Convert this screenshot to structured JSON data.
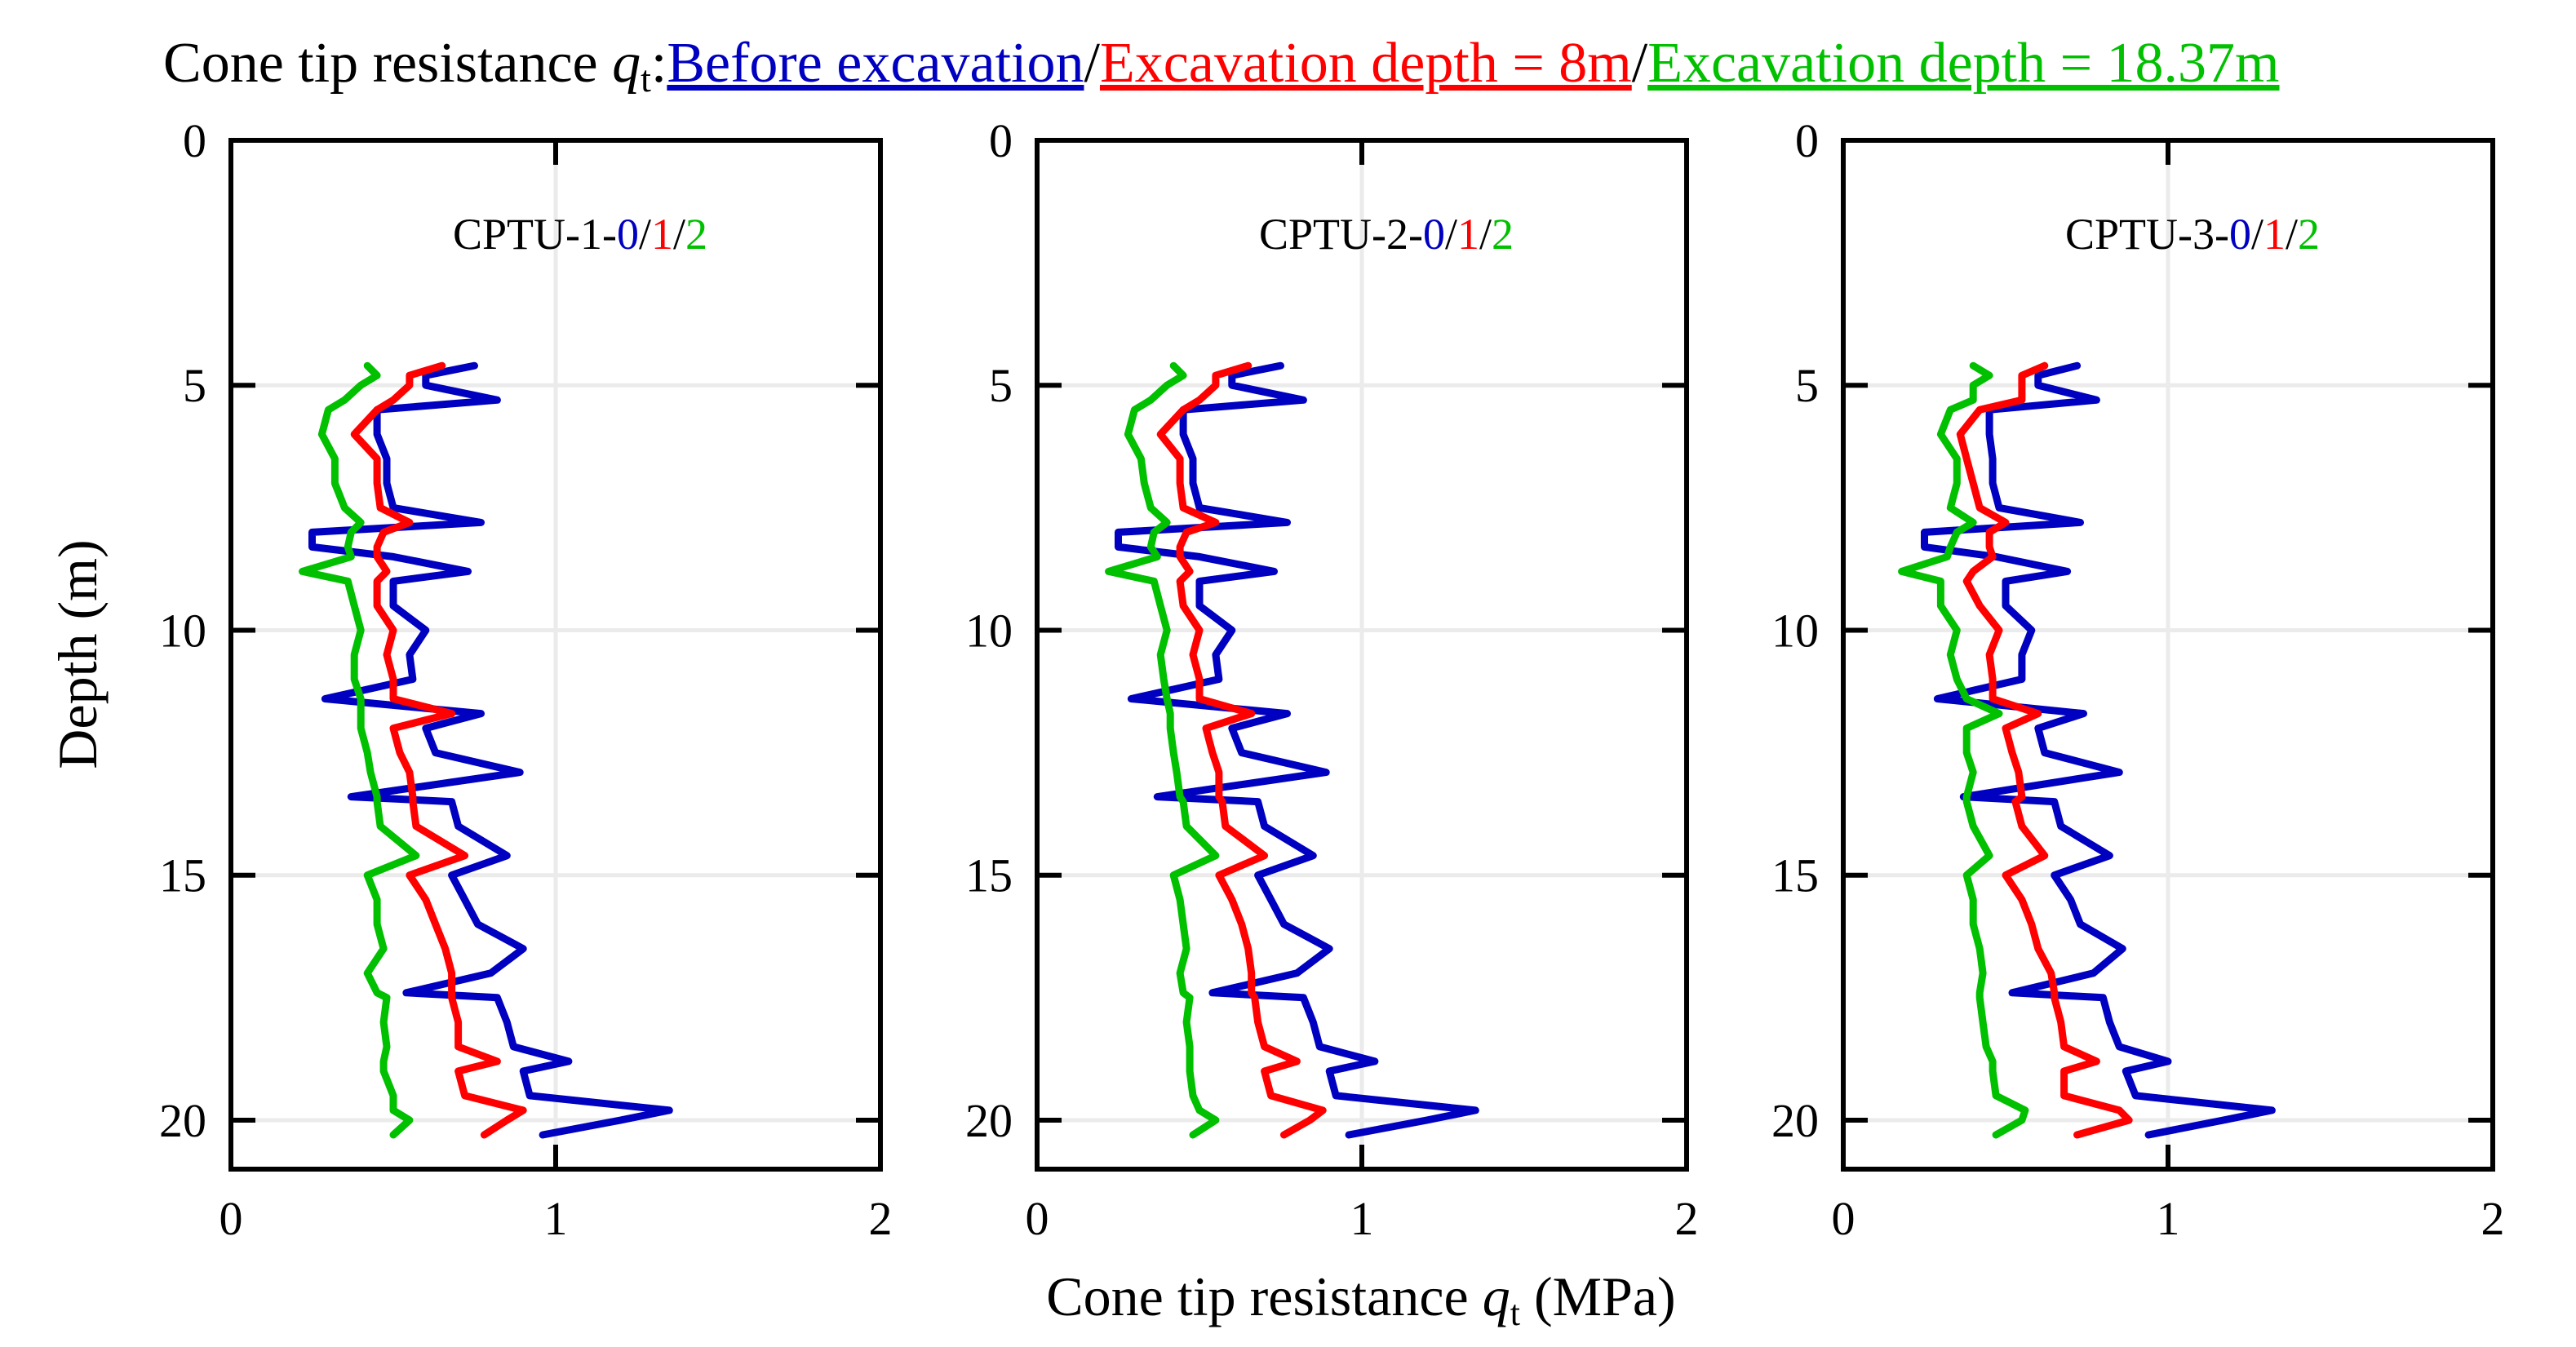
{
  "chart_data": {
    "type": "line",
    "title": {
      "prefix": "Cone tip resistance ",
      "symbol": "q",
      "subscript": "t",
      "colon": ":",
      "sep": "/",
      "legend": [
        {
          "label": "Before excavation",
          "color": "#0000c0"
        },
        {
          "label": "Excavation depth = 8m",
          "color": "#ff0000"
        },
        {
          "label": "Excavation depth = 18.37m",
          "color": "#00c000"
        }
      ]
    },
    "xlabel": {
      "prefix": "Cone tip resistance ",
      "symbol": "q",
      "subscript": "t",
      "suffix": " (MPa)"
    },
    "ylabel": "Depth (m)",
    "xlim": [
      0,
      2
    ],
    "ylim": [
      0,
      21
    ],
    "y_inverted": true,
    "xticks": [
      "0",
      "1",
      "2"
    ],
    "yticks": [
      "0",
      "5",
      "10",
      "15",
      "20"
    ],
    "grid": true,
    "depth": [
      4.6,
      4.8,
      5.0,
      5.3,
      5.5,
      6.0,
      6.5,
      7.0,
      7.5,
      7.8,
      8.0,
      8.3,
      8.5,
      8.8,
      9.0,
      9.5,
      10.0,
      10.5,
      11.0,
      11.4,
      11.7,
      12.0,
      12.5,
      12.9,
      13.4,
      13.5,
      14.0,
      14.6,
      15.0,
      15.5,
      16.0,
      16.5,
      17.0,
      17.4,
      17.5,
      18.0,
      18.5,
      18.8,
      19.0,
      19.5,
      19.8,
      20.0,
      20.3
    ],
    "panels": [
      {
        "name": "CPTU-1",
        "label_prefix": "CPTU-1-",
        "label_parts": [
          "0",
          "1",
          "2"
        ],
        "label_seps": [
          "/",
          "/"
        ],
        "series": [
          {
            "name": "Before excavation",
            "color": "#0000c0",
            "values": [
              0.75,
              0.6,
              0.6,
              0.82,
              0.45,
              0.45,
              0.48,
              0.48,
              0.5,
              0.77,
              0.25,
              0.25,
              0.5,
              0.73,
              0.5,
              0.5,
              0.6,
              0.55,
              0.56,
              0.29,
              0.77,
              0.6,
              0.63,
              0.89,
              0.37,
              0.68,
              0.7,
              0.85,
              0.68,
              0.72,
              0.76,
              0.9,
              0.8,
              0.54,
              0.82,
              0.85,
              0.87,
              1.04,
              0.9,
              0.92,
              1.35,
              1.2,
              0.96
            ]
          },
          {
            "name": "Excavation depth = 8m",
            "color": "#ff0000",
            "values": [
              0.65,
              0.55,
              0.55,
              0.5,
              0.45,
              0.38,
              0.45,
              0.45,
              0.46,
              0.55,
              0.47,
              0.45,
              0.45,
              0.48,
              0.45,
              0.45,
              0.5,
              0.48,
              0.5,
              0.5,
              0.68,
              0.5,
              0.52,
              0.55,
              0.56,
              0.56,
              0.57,
              0.72,
              0.55,
              0.6,
              0.63,
              0.66,
              0.68,
              0.68,
              0.68,
              0.7,
              0.7,
              0.82,
              0.7,
              0.72,
              0.9,
              0.85,
              0.78
            ]
          },
          {
            "name": "Excavation depth = 18.37m",
            "color": "#00c000",
            "values": [
              0.42,
              0.45,
              0.4,
              0.35,
              0.3,
              0.28,
              0.32,
              0.32,
              0.35,
              0.4,
              0.37,
              0.36,
              0.37,
              0.22,
              0.36,
              0.38,
              0.4,
              0.38,
              0.38,
              0.4,
              0.4,
              0.4,
              0.42,
              0.43,
              0.45,
              0.45,
              0.46,
              0.57,
              0.42,
              0.45,
              0.45,
              0.47,
              0.42,
              0.45,
              0.48,
              0.47,
              0.48,
              0.47,
              0.47,
              0.5,
              0.5,
              0.55,
              0.5
            ]
          }
        ]
      },
      {
        "name": "CPTU-2",
        "label_prefix": "CPTU-2-",
        "label_parts": [
          "0",
          "1",
          "2"
        ],
        "label_seps": [
          "/",
          "/"
        ],
        "series": [
          {
            "name": "Before excavation",
            "color": "#0000c0",
            "values": [
              0.75,
              0.6,
              0.6,
              0.82,
              0.45,
              0.45,
              0.48,
              0.48,
              0.5,
              0.77,
              0.25,
              0.25,
              0.5,
              0.73,
              0.5,
              0.5,
              0.6,
              0.55,
              0.56,
              0.29,
              0.77,
              0.6,
              0.63,
              0.89,
              0.37,
              0.68,
              0.7,
              0.85,
              0.68,
              0.72,
              0.76,
              0.9,
              0.8,
              0.54,
              0.82,
              0.85,
              0.87,
              1.04,
              0.9,
              0.92,
              1.35,
              1.2,
              0.96
            ]
          },
          {
            "name": "Excavation depth = 8m",
            "color": "#ff0000",
            "values": [
              0.65,
              0.55,
              0.55,
              0.5,
              0.45,
              0.38,
              0.44,
              0.44,
              0.45,
              0.55,
              0.46,
              0.44,
              0.44,
              0.47,
              0.44,
              0.45,
              0.5,
              0.48,
              0.5,
              0.5,
              0.66,
              0.52,
              0.54,
              0.56,
              0.56,
              0.57,
              0.58,
              0.7,
              0.56,
              0.6,
              0.63,
              0.65,
              0.66,
              0.66,
              0.67,
              0.68,
              0.7,
              0.8,
              0.7,
              0.72,
              0.88,
              0.84,
              0.76
            ]
          },
          {
            "name": "Excavation depth = 18.37m",
            "color": "#00c000",
            "values": [
              0.42,
              0.45,
              0.4,
              0.35,
              0.3,
              0.28,
              0.32,
              0.33,
              0.35,
              0.4,
              0.36,
              0.35,
              0.37,
              0.22,
              0.36,
              0.38,
              0.4,
              0.38,
              0.39,
              0.4,
              0.41,
              0.41,
              0.42,
              0.43,
              0.44,
              0.45,
              0.46,
              0.55,
              0.42,
              0.44,
              0.45,
              0.46,
              0.44,
              0.45,
              0.47,
              0.46,
              0.47,
              0.47,
              0.47,
              0.48,
              0.5,
              0.55,
              0.48
            ]
          }
        ]
      },
      {
        "name": "CPTU-3",
        "label_prefix": "CPTU-3-",
        "label_parts": [
          "0",
          "1",
          "2"
        ],
        "label_seps": [
          "/",
          "/"
        ],
        "series": [
          {
            "name": "Before excavation",
            "color": "#0000c0",
            "values": [
              0.72,
              0.6,
              0.6,
              0.78,
              0.45,
              0.45,
              0.46,
              0.46,
              0.48,
              0.73,
              0.25,
              0.25,
              0.47,
              0.69,
              0.5,
              0.5,
              0.58,
              0.55,
              0.55,
              0.29,
              0.74,
              0.6,
              0.62,
              0.85,
              0.37,
              0.65,
              0.67,
              0.82,
              0.65,
              0.7,
              0.73,
              0.86,
              0.77,
              0.52,
              0.8,
              0.82,
              0.85,
              1.0,
              0.87,
              0.9,
              1.32,
              1.17,
              0.94
            ]
          },
          {
            "name": "Excavation depth = 8m",
            "color": "#ff0000",
            "values": [
              0.62,
              0.55,
              0.55,
              0.55,
              0.42,
              0.36,
              0.38,
              0.4,
              0.42,
              0.5,
              0.45,
              0.45,
              0.46,
              0.4,
              0.38,
              0.42,
              0.48,
              0.45,
              0.46,
              0.46,
              0.6,
              0.5,
              0.52,
              0.54,
              0.55,
              0.53,
              0.55,
              0.62,
              0.5,
              0.55,
              0.58,
              0.6,
              0.64,
              0.65,
              0.65,
              0.67,
              0.68,
              0.78,
              0.68,
              0.68,
              0.85,
              0.88,
              0.72
            ]
          },
          {
            "name": "Excavation depth = 18.37m",
            "color": "#00c000",
            "values": [
              0.4,
              0.45,
              0.4,
              0.4,
              0.33,
              0.3,
              0.35,
              0.35,
              0.33,
              0.4,
              0.35,
              0.33,
              0.32,
              0.18,
              0.3,
              0.3,
              0.35,
              0.33,
              0.35,
              0.38,
              0.48,
              0.38,
              0.38,
              0.4,
              0.38,
              0.38,
              0.4,
              0.45,
              0.38,
              0.4,
              0.4,
              0.42,
              0.43,
              0.42,
              0.42,
              0.43,
              0.44,
              0.46,
              0.46,
              0.47,
              0.56,
              0.55,
              0.47
            ]
          }
        ]
      }
    ]
  }
}
